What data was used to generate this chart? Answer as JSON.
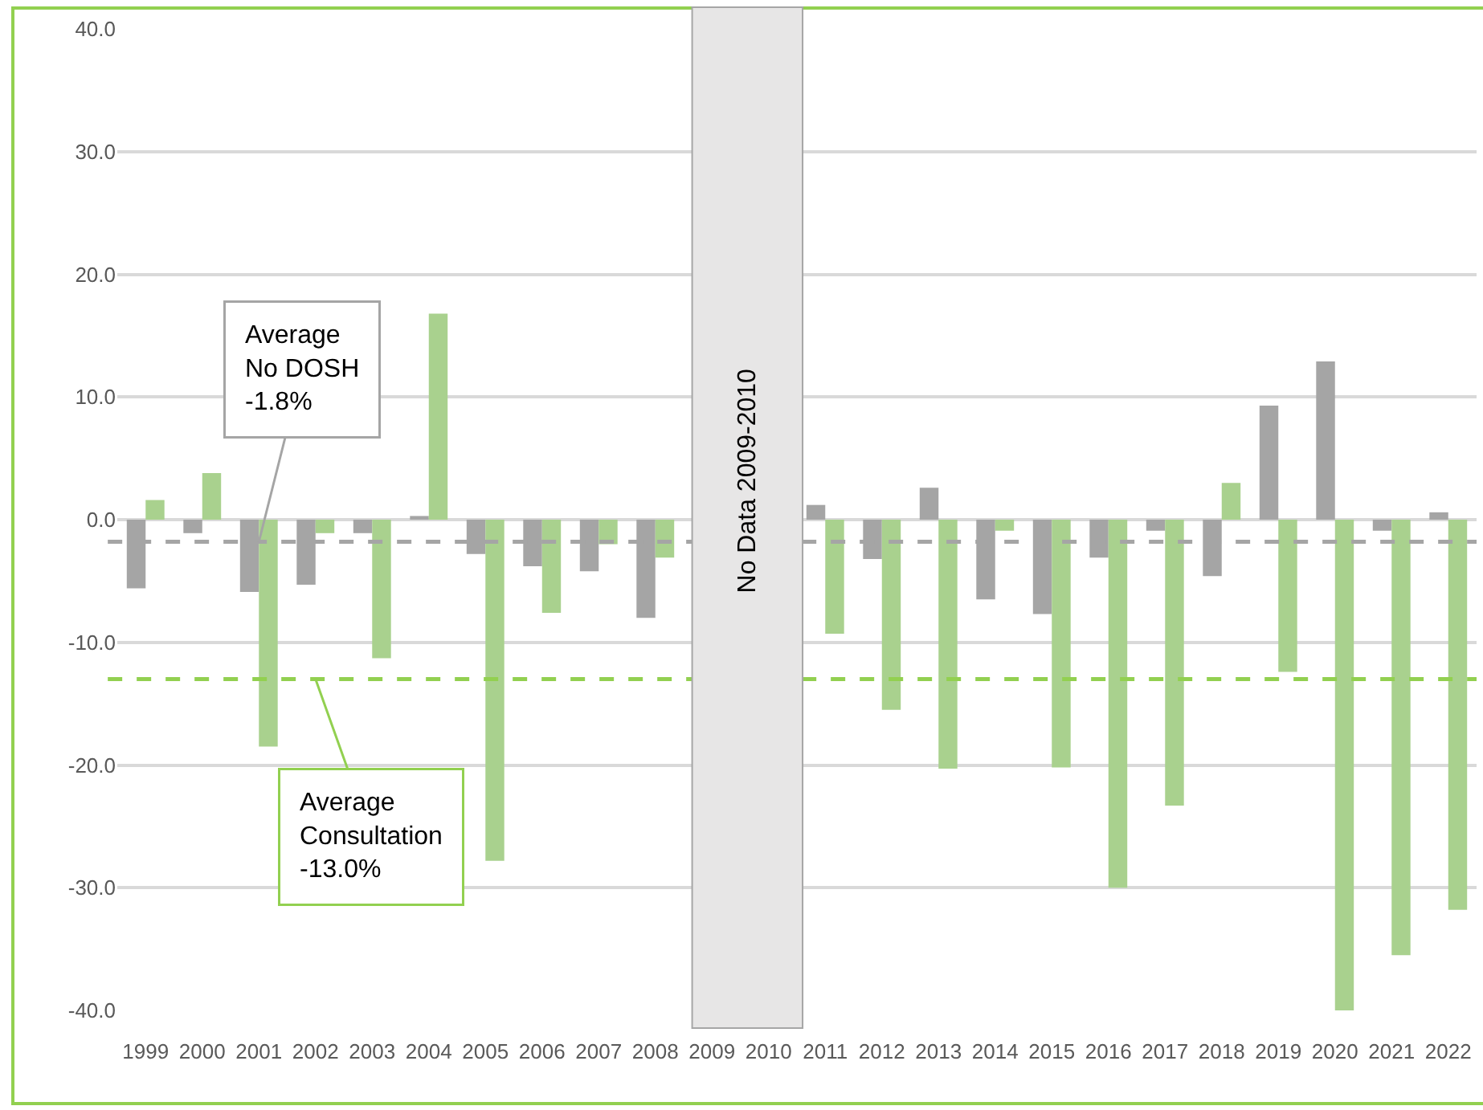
{
  "chart_data": {
    "type": "bar",
    "categories": [
      "1999",
      "2000",
      "2001",
      "2002",
      "2003",
      "2004",
      "2005",
      "2006",
      "2007",
      "2008",
      "2009",
      "2010",
      "2011",
      "2012",
      "2013",
      "2014",
      "2015",
      "2016",
      "2017",
      "2018",
      "2019",
      "2020",
      "2021",
      "2022"
    ],
    "series": [
      {
        "color": "#a5a5a5",
        "values": [
          -5.6,
          -1.1,
          -5.9,
          -5.3,
          -1.1,
          0.3,
          -2.8,
          -3.8,
          -4.2,
          -8.0,
          null,
          null,
          1.2,
          -3.2,
          2.6,
          -6.5,
          -7.7,
          -3.1,
          -0.9,
          -4.6,
          9.3,
          12.9,
          -0.9,
          0.6
        ]
      },
      {
        "color": "#a9d18e",
        "values": [
          1.6,
          3.8,
          -18.5,
          -1.1,
          -11.3,
          16.8,
          -27.8,
          -7.6,
          -2.0,
          -3.1,
          null,
          null,
          -9.3,
          -15.5,
          -20.3,
          -0.9,
          -20.2,
          -30.0,
          -23.3,
          3.0,
          -12.4,
          -40.0,
          -35.5,
          -31.8
        ]
      }
    ],
    "ylim": [
      -40,
      40
    ],
    "yticks": [
      {
        "value": -40,
        "label": "-40.0"
      },
      {
        "value": -30,
        "label": "-30.0"
      },
      {
        "value": -20,
        "label": "-20.0"
      },
      {
        "value": -10,
        "label": "-10.0"
      },
      {
        "value": 0,
        "label": "0.0"
      },
      {
        "value": 10,
        "label": "10.0"
      },
      {
        "value": 20,
        "label": "20.0"
      },
      {
        "value": 30,
        "label": "30.0"
      },
      {
        "value": 40,
        "label": "40.0"
      }
    ],
    "grid": "y",
    "ref_lines": [
      {
        "axis": "y",
        "value": -1.8,
        "color": "#a5a5a5",
        "line_style": "dashed"
      },
      {
        "axis": "y",
        "value": -13.0,
        "color": "#92d050",
        "line_style": "dashed"
      }
    ],
    "bands": [
      {
        "axis": "x",
        "from": "2009",
        "to": "2010",
        "label": "No Data 2009-2010",
        "color": "#e7e6e6"
      }
    ],
    "annotations": [
      {
        "text": "Average\nNo DOSH\n-1.8%",
        "x": "2001",
        "y": -1.8
      },
      {
        "text": "Average\nConsultation\n-13.0%",
        "x": "2002",
        "y": -13.0
      }
    ]
  }
}
